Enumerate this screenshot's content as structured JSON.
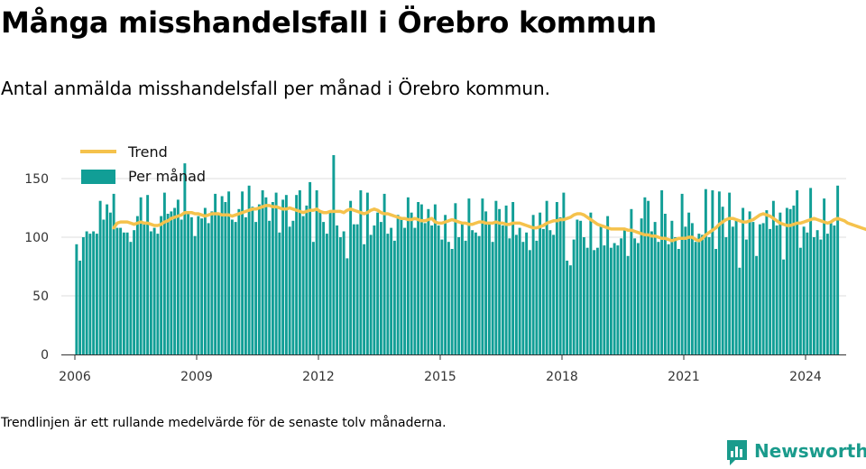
{
  "header": {
    "title": "Många misshandelsfall i Örebro kommun",
    "subtitle": "Antal anmälda misshandelsfall per månad i Örebro kommun."
  },
  "footer": {
    "note": "Trendlinjen är ett rullande medelvärde för de senaste tolv månaderna.",
    "brand_name": "Newsworthy"
  },
  "colors": {
    "bar": "#119e96",
    "trend": "#f5c24c",
    "grid": "#dddddd",
    "brand": "#1a9b8c"
  },
  "icons": {
    "brand_logo": "newsworthy-logo-icon"
  },
  "chart_data": {
    "type": "bar",
    "title": "Många misshandelsfall i Örebro kommun",
    "subtitle": "Antal anmälda misshandelsfall per månad i Örebro kommun.",
    "xlabel": "",
    "ylabel": "",
    "x_start": "2006-01",
    "x_ticks": [
      "2006",
      "2009",
      "2012",
      "2015",
      "2018",
      "2021",
      "2024"
    ],
    "xlim": [
      "2005-09",
      "2025-01"
    ],
    "y_ticks": [
      0,
      50,
      100,
      150
    ],
    "ylim": [
      0,
      175
    ],
    "grid": true,
    "legend_position": "top-left",
    "series": [
      {
        "name": "Per månad",
        "kind": "bar",
        "values": [
          94,
          80,
          100,
          105,
          103,
          105,
          103,
          131,
          115,
          128,
          121,
          137,
          108,
          108,
          104,
          104,
          96,
          106,
          118,
          134,
          111,
          136,
          105,
          108,
          103,
          118,
          138,
          120,
          122,
          125,
          132,
          115,
          163,
          121,
          117,
          101,
          118,
          116,
          125,
          112,
          122,
          137,
          119,
          135,
          130,
          139,
          115,
          113,
          124,
          139,
          117,
          144,
          126,
          113,
          128,
          140,
          134,
          114,
          130,
          138,
          104,
          132,
          136,
          109,
          114,
          136,
          140,
          118,
          127,
          147,
          96,
          140,
          122,
          113,
          103,
          123,
          170,
          110,
          100,
          105,
          82,
          131,
          111,
          111,
          140,
          94,
          138,
          102,
          110,
          121,
          113,
          137,
          103,
          108,
          97,
          119,
          115,
          108,
          134,
          121,
          108,
          130,
          128,
          112,
          124,
          110,
          128,
          110,
          98,
          119,
          96,
          90,
          129,
          100,
          113,
          97,
          133,
          106,
          104,
          101,
          133,
          122,
          112,
          96,
          131,
          124,
          110,
          127,
          99,
          130,
          102,
          108,
          96,
          104,
          89,
          119,
          97,
          121,
          107,
          131,
          106,
          102,
          130,
          117,
          138,
          80,
          76,
          98,
          115,
          114,
          100,
          91,
          121,
          89,
          91,
          110,
          93,
          118,
          91,
          95,
          93,
          99,
          106,
          84,
          124,
          99,
          95,
          116,
          134,
          131,
          105,
          113,
          96,
          140,
          120,
          94,
          114,
          100,
          90,
          137,
          109,
          121,
          112,
          96,
          103,
          102,
          141,
          100,
          140,
          90,
          139,
          126,
          100,
          138,
          109,
          114,
          74,
          125,
          98,
          122,
          113,
          84,
          111,
          112,
          123,
          107,
          131,
          110,
          121,
          81,
          125,
          124,
          127,
          140,
          91,
          109,
          104,
          142,
          100,
          106,
          98,
          133,
          103,
          112,
          110,
          144
        ]
      },
      {
        "name": "Trend",
        "kind": "line",
        "start_index": 11,
        "values": [
          108,
          112,
          113,
          113,
          113,
          112,
          111,
          112,
          113,
          112,
          112,
          111,
          110,
          110,
          111,
          113,
          114,
          116,
          117,
          118,
          119,
          121,
          121,
          121,
          120,
          120,
          119,
          118,
          119,
          120,
          120,
          120,
          119,
          119,
          119,
          118,
          119,
          120,
          121,
          122,
          123,
          124,
          124,
          125,
          126,
          127,
          127,
          126,
          126,
          125,
          124,
          124,
          125,
          124,
          123,
          122,
          121,
          122,
          123,
          123,
          124,
          122,
          121,
          121,
          122,
          122,
          122,
          122,
          121,
          123,
          124,
          123,
          122,
          121,
          120,
          121,
          123,
          124,
          123,
          121,
          120,
          120,
          119,
          118,
          117,
          116,
          116,
          115,
          115,
          116,
          115,
          114,
          114,
          115,
          116,
          113,
          112,
          112,
          113,
          114,
          115,
          114,
          113,
          112,
          112,
          111,
          111,
          112,
          113,
          113,
          112,
          112,
          112,
          113,
          112,
          112,
          111,
          111,
          112,
          112,
          112,
          111,
          110,
          109,
          108,
          108,
          109,
          110,
          112,
          113,
          114,
          114,
          115,
          115,
          116,
          117,
          119,
          120,
          120,
          119,
          117,
          115,
          113,
          111,
          110,
          109,
          108,
          107,
          107,
          107,
          107,
          107,
          106,
          106,
          105,
          104,
          103,
          102,
          102,
          101,
          101,
          100,
          99,
          99,
          98,
          97,
          98,
          99,
          99,
          99,
          100,
          100,
          98,
          97,
          99,
          102,
          104,
          106,
          108,
          111,
          113,
          115,
          116,
          116,
          115,
          114,
          113,
          113,
          114,
          115,
          117,
          119,
          120,
          119,
          118,
          116,
          114,
          112,
          111,
          110,
          110,
          111,
          112,
          112,
          113,
          114,
          115,
          116,
          115,
          114,
          113,
          112,
          113,
          115,
          116,
          115,
          114,
          112,
          111,
          110,
          109,
          108,
          107,
          106,
          106,
          107,
          108,
          109,
          110,
          111,
          112,
          113,
          114,
          115,
          116,
          116,
          116,
          116,
          116,
          116,
          117,
          118,
          119
        ]
      }
    ]
  }
}
